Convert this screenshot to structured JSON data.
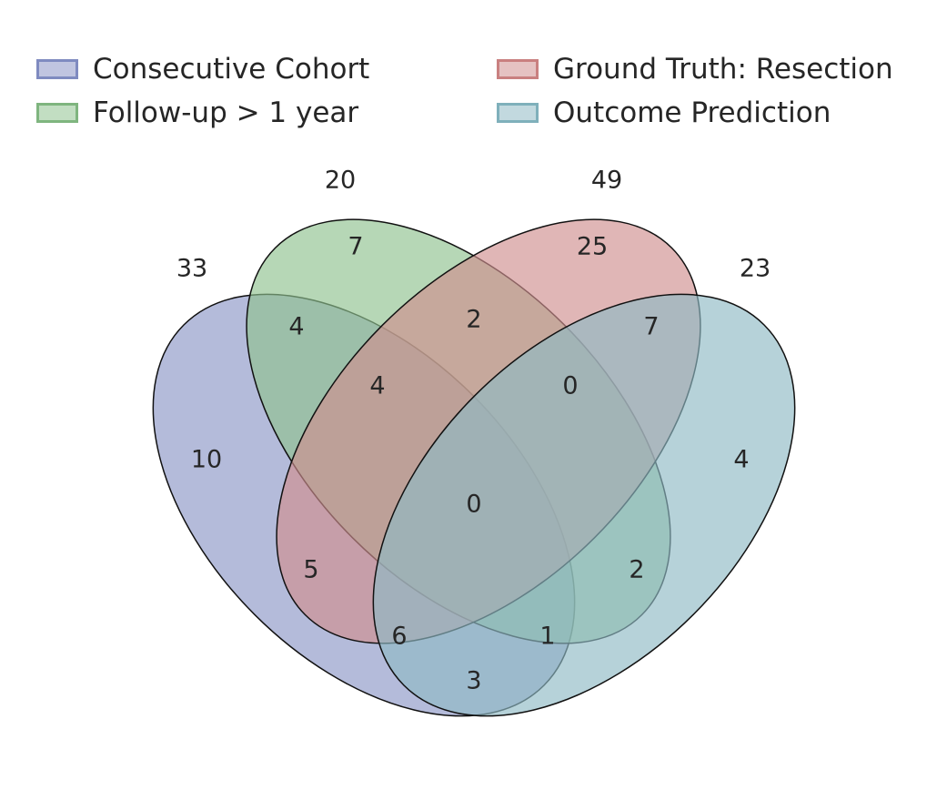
{
  "legend": [
    {
      "label": "Consecutive Cohort",
      "color": "#8c96c6"
    },
    {
      "label": "Follow-up > 1 year",
      "color": "#8fc28f"
    },
    {
      "label": "Ground Truth: Resection",
      "color": "#d08f8f"
    },
    {
      "label": "Outcome Prediction",
      "color": "#8fbac4"
    }
  ],
  "set_totals": {
    "consecutive_cohort": "33",
    "follow_up": "20",
    "ground_truth": "49",
    "outcome_prediction": "23"
  },
  "regions": {
    "cohort_only": "10",
    "followup_only": "7",
    "truth_only": "25",
    "prediction_only": "4",
    "cohort_followup": "4",
    "followup_truth": "2",
    "truth_prediction": "7",
    "cohort_followup_truth": "4",
    "followup_truth_prediction": "0",
    "all_four": "0",
    "cohort_truth": "5",
    "followup_prediction": "2",
    "cohort_truth_prediction": "6",
    "cohort_followup_prediction": "1",
    "cohort_prediction": "3"
  }
}
